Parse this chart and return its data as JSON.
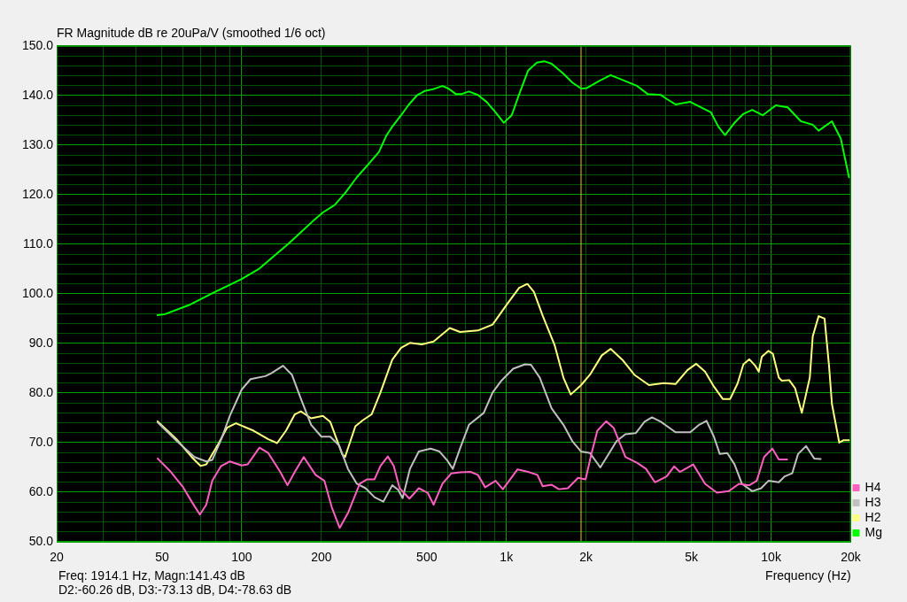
{
  "chart_data": {
    "type": "line",
    "title": "FR Magnitude dB re 20uPa/V (smoothed 1/6 oct)",
    "xlabel": "Frequency (Hz)",
    "log": "x",
    "grid": true,
    "legend": "bottom right",
    "xlim": [
      20,
      20000
    ],
    "xticks": [
      20,
      {
        "value": 30,
        "label": null
      },
      {
        "value": 40,
        "label": null
      },
      50,
      {
        "value": 60,
        "label": null
      },
      {
        "value": 70,
        "label": null
      },
      {
        "value": 80,
        "label": null
      },
      {
        "value": 90,
        "label": null
      },
      100,
      200,
      {
        "value": 300,
        "label": null
      },
      {
        "value": 400,
        "label": null
      },
      500,
      {
        "value": 600,
        "label": null
      },
      {
        "value": 700,
        "label": null
      },
      {
        "value": 800,
        "label": null
      },
      {
        "value": 900,
        "label": null
      },
      {
        "value": 1000,
        "label": "1k"
      },
      {
        "value": 2000,
        "label": "2k"
      },
      {
        "value": 3000,
        "label": null
      },
      {
        "value": 4000,
        "label": null
      },
      {
        "value": 5000,
        "label": "5k"
      },
      {
        "value": 6000,
        "label": null
      },
      {
        "value": 7000,
        "label": null
      },
      {
        "value": 8000,
        "label": null
      },
      {
        "value": 9000,
        "label": null
      },
      {
        "value": 10000,
        "label": "10k"
      },
      {
        "value": 20000,
        "label": "20k"
      }
    ],
    "ylim": [
      50,
      150
    ],
    "yticks": [
      {
        "value": 50,
        "label": "50.0"
      },
      {
        "value": 52,
        "label": null
      },
      {
        "value": 54,
        "label": null
      },
      {
        "value": 56,
        "label": null
      },
      {
        "value": 58,
        "label": null
      },
      {
        "value": 60,
        "label": "60.0"
      },
      {
        "value": 62,
        "label": null
      },
      {
        "value": 64,
        "label": null
      },
      {
        "value": 66,
        "label": null
      },
      {
        "value": 68,
        "label": null
      },
      {
        "value": 70,
        "label": "70.0"
      },
      {
        "value": 72,
        "label": null
      },
      {
        "value": 74,
        "label": null
      },
      {
        "value": 76,
        "label": null
      },
      {
        "value": 78,
        "label": null
      },
      {
        "value": 80,
        "label": "80.0"
      },
      {
        "value": 82,
        "label": null
      },
      {
        "value": 84,
        "label": null
      },
      {
        "value": 86,
        "label": null
      },
      {
        "value": 88,
        "label": null
      },
      {
        "value": 90,
        "label": "90.0"
      },
      {
        "value": 92,
        "label": null
      },
      {
        "value": 94,
        "label": null
      },
      {
        "value": 96,
        "label": null
      },
      {
        "value": 98,
        "label": null
      },
      {
        "value": 100,
        "label": "100.0"
      },
      {
        "value": 102,
        "label": null
      },
      {
        "value": 104,
        "label": null
      },
      {
        "value": 106,
        "label": null
      },
      {
        "value": 108,
        "label": null
      },
      {
        "value": 110,
        "label": "110.0"
      },
      {
        "value": 112,
        "label": null
      },
      {
        "value": 114,
        "label": null
      },
      {
        "value": 116,
        "label": null
      },
      {
        "value": 118,
        "label": null
      },
      {
        "value": 120,
        "label": "120.0"
      },
      {
        "value": 122,
        "label": null
      },
      {
        "value": 124,
        "label": null
      },
      {
        "value": 126,
        "label": null
      },
      {
        "value": 128,
        "label": null
      },
      {
        "value": 130,
        "label": "130.0"
      },
      {
        "value": 132,
        "label": null
      },
      {
        "value": 134,
        "label": null
      },
      {
        "value": 136,
        "label": null
      },
      {
        "value": 138,
        "label": null
      },
      {
        "value": 140,
        "label": "140.0"
      },
      {
        "value": 142,
        "label": null
      },
      {
        "value": 144,
        "label": null
      },
      {
        "value": 146,
        "label": null
      },
      {
        "value": 148,
        "label": null
      },
      {
        "value": 150,
        "label": "150.0"
      }
    ],
    "ref_lines": [
      {
        "axis": "x",
        "value": 1914.1,
        "color": "#e6c619"
      }
    ],
    "annotations": [
      "Freq: 1914.1 Hz, Magn:141.43 dB",
      "D2:-60.26 dB, D3:-73.13 dB, D4:-78.63 dB"
    ],
    "series": [
      {
        "name": "H4",
        "color": "#ff60c0",
        "x": [
          48.1,
          54,
          59.9,
          64.7,
          69.5,
          73.5,
          77.4,
          83.6,
          90.2,
          100,
          105.3,
          116.7,
          126,
          139.8,
          148.9,
          158.7,
          171.5,
          190.1,
          205.3,
          218.8,
          234.6,
          252,
          279.2,
          297.8,
          317.4,
          334.3,
          356.4,
          375.2,
          395.1,
          430,
          466.6,
          503.9,
          530.8,
          573.2,
          619.2,
          668,
          731.5,
          780,
          831,
          910,
          969.5,
          1102,
          1207,
          1309,
          1371,
          1482,
          1580,
          1706,
          1866,
          1991,
          2094,
          2206,
          2382,
          2541,
          2815,
          3120,
          3369,
          3639,
          4031,
          4300,
          4524,
          5079,
          5630,
          6240,
          6913,
          7562,
          8275,
          8822,
          9407,
          10110,
          10690,
          11490
        ],
        "values": [
          66.8,
          64.1,
          61.1,
          58.1,
          55.5,
          57.5,
          62.3,
          65.3,
          66.2,
          65.4,
          65.6,
          69.0,
          67.9,
          64.1,
          61.4,
          64.1,
          67.1,
          63.5,
          62.3,
          57.0,
          52.8,
          55.8,
          61.7,
          62.6,
          62.6,
          65.3,
          67.2,
          65.3,
          60.8,
          58.7,
          60.8,
          59.9,
          57.5,
          61.7,
          63.8,
          64.0,
          64.1,
          63.5,
          61.0,
          62.3,
          60.6,
          64.6,
          64.1,
          63.5,
          61.2,
          61.5,
          60.6,
          60.8,
          62.9,
          62.6,
          67.7,
          72.4,
          74.3,
          73.0,
          67.1,
          65.9,
          64.7,
          62.0,
          63.2,
          65.2,
          64.1,
          65.6,
          61.7,
          59.9,
          60.2,
          61.7,
          61.4,
          62.3,
          67.1,
          68.8,
          66.6,
          66.6
        ]
      },
      {
        "name": "H3",
        "color": "#c0c0c0",
        "x": [
          48.1,
          56.9,
          66.3,
          73.5,
          77.4,
          83.6,
          90.2,
          100,
          108,
          122.9,
          129.3,
          143.3,
          154.7,
          167.2,
          182.9,
          200,
          216,
          233.4,
          252,
          272.2,
          293.9,
          317.4,
          342.9,
          370.4,
          390,
          405.4,
          432,
          466.6,
          517.3,
          558.8,
          595.8,
          627.3,
          668,
          722,
          821,
          887,
          957.6,
          1061,
          1176,
          1238,
          1337,
          1482,
          1642,
          1774,
          1915,
          2069,
          2263,
          2414,
          2606,
          2815,
          3079,
          3325,
          3547,
          3831,
          4354,
          4950,
          5346,
          5701,
          6080,
          6398,
          6830,
          7277,
          7756,
          8488,
          9166,
          9772,
          10690,
          11260,
          12010,
          12640,
          13550,
          14550,
          15390
        ],
        "values": [
          74.1,
          70.3,
          67.1,
          66.2,
          66.5,
          70.6,
          75.4,
          80.7,
          82.8,
          83.4,
          84.0,
          85.5,
          83.7,
          78.9,
          73.6,
          71.2,
          71.2,
          69.4,
          64.7,
          61.7,
          60.8,
          59.0,
          58.1,
          61.4,
          60.5,
          58.8,
          64.7,
          68.2,
          68.8,
          68.2,
          66.5,
          64.7,
          68.8,
          73.6,
          76.0,
          80.1,
          82.5,
          84.9,
          85.8,
          85.7,
          83.1,
          76.9,
          73.6,
          70.3,
          68.2,
          67.9,
          65.0,
          67.4,
          70.3,
          71.7,
          71.9,
          74.2,
          75.1,
          74.2,
          72.1,
          72.1,
          73.6,
          74.4,
          71.2,
          67.7,
          67.9,
          65.6,
          61.7,
          60.2,
          60.8,
          62.3,
          62.0,
          63.2,
          63.8,
          67.7,
          69.3,
          66.8,
          66.7
        ]
      },
      {
        "name": "H2",
        "color": "#ffff80",
        "x": [
          48.1,
          56.9,
          64.7,
          69.9,
          73.5,
          81.5,
          88,
          95.1,
          110.9,
          126,
          136.1,
          147,
          158.7,
          167.2,
          182.9,
          202.6,
          216,
          239.5,
          245.7,
          268.8,
          286.6,
          309.6,
          334.3,
          370.4,
          400,
          432,
          479,
          530.8,
          611,
          668,
          780,
          886.8,
          1008,
          1117,
          1200,
          1270,
          1371,
          1520,
          1642,
          1750,
          1915,
          2069,
          2293,
          2475,
          2743,
          3040,
          3456,
          3930,
          4354,
          4827,
          5212,
          5630,
          6080,
          6567,
          7002,
          7468,
          7858,
          8275,
          8710,
          8980,
          9220,
          9772,
          10155,
          10690,
          10970,
          11700,
          12310,
          13060,
          14000,
          14360,
          15120,
          15920,
          16550,
          16970,
          18090,
          18810,
          19690
        ],
        "values": [
          74.3,
          70.6,
          67.1,
          65.3,
          65.6,
          69.7,
          73.0,
          73.9,
          72.4,
          70.7,
          69.9,
          72.4,
          75.7,
          76.3,
          74.9,
          75.4,
          74.2,
          67.7,
          67.1,
          73.3,
          74.5,
          75.7,
          80.1,
          86.7,
          89.1,
          90.1,
          89.8,
          90.4,
          93.1,
          92.3,
          92.6,
          93.8,
          98.0,
          101.2,
          102.0,
          100.4,
          95.6,
          89.7,
          83.1,
          79.7,
          81.6,
          83.7,
          87.6,
          88.9,
          86.7,
          83.7,
          81.6,
          82.0,
          81.8,
          84.6,
          85.9,
          84.3,
          81.3,
          78.8,
          78.8,
          81.9,
          85.8,
          86.8,
          85.5,
          84.3,
          87.3,
          88.5,
          87.9,
          83.1,
          82.5,
          82.6,
          81.0,
          76.0,
          83.1,
          91.4,
          95.5,
          95.0,
          85.5,
          77.8,
          70.0,
          70.5,
          70.5
        ]
      },
      {
        "name": "Mg",
        "color": "#00ff00",
        "x": [
          48.1,
          51.3,
          63,
          79.4,
          100,
          116.7,
          150.9,
          185.2,
          202.6,
          224.4,
          245.7,
          272.2,
          301.8,
          330,
          352,
          370.4,
          400,
          426.9,
          460.8,
          491.4,
          523.6,
          573.2,
          603.6,
          643.5,
          677.5,
          722,
          780,
          842,
          909.8,
          977.5,
          1047,
          1117,
          1207,
          1303,
          1390,
          1482,
          1642,
          1774,
          1915,
          2015,
          2235,
          2475,
          2815,
          3120,
          3414,
          3831,
          4031,
          4354,
          4950,
          5485,
          5924,
          6320,
          6700,
          7277,
          7858,
          8488,
          9288,
          10425,
          11550,
          12960,
          14360,
          15120,
          16970,
          18330,
          19690
        ],
        "values": [
          95.7,
          95.9,
          97.7,
          100.4,
          103.0,
          105.1,
          110.2,
          114.6,
          116.4,
          117.9,
          120.3,
          123.5,
          126.2,
          128.6,
          131.9,
          133.7,
          136.0,
          138.1,
          140.1,
          140.9,
          141.2,
          141.9,
          141.4,
          140.3,
          140.3,
          140.8,
          140.1,
          138.7,
          136.6,
          134.5,
          136.0,
          140.2,
          145.0,
          146.6,
          146.9,
          146.4,
          144.4,
          142.6,
          141.4,
          141.5,
          142.9,
          144.1,
          142.9,
          141.9,
          140.3,
          140.1,
          139.3,
          138.2,
          138.7,
          137.5,
          136.6,
          133.7,
          132.0,
          134.5,
          136.3,
          137.1,
          136.0,
          138.0,
          137.6,
          134.8,
          134.1,
          132.9,
          134.8,
          131.3,
          123.5
        ]
      }
    ]
  }
}
